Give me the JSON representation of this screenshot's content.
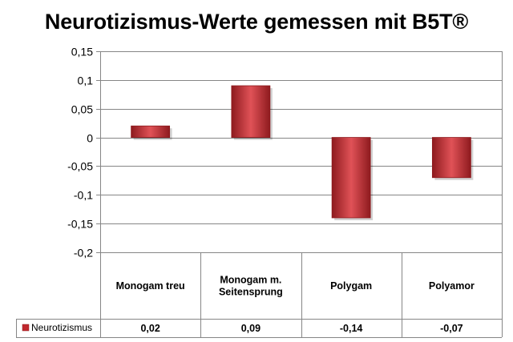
{
  "chart_data": {
    "type": "bar",
    "title": "Neurotizismus-Werte gemessen mit B5T®",
    "categories": [
      "Monogam treu",
      "Monogam m. Seitensprung",
      "Polygam",
      "Polyamor"
    ],
    "category_lines": [
      [
        "Monogam treu"
      ],
      [
        "Monogam m.",
        "Seitensprung"
      ],
      [
        "Polygam"
      ],
      [
        "Polyamor"
      ]
    ],
    "series": [
      {
        "name": "Neurotizismus",
        "values": [
          0.02,
          0.09,
          -0.14,
          -0.07
        ],
        "value_labels": [
          "0,02",
          "0,09",
          "-0,14",
          "-0,07"
        ]
      }
    ],
    "ylim": [
      -0.2,
      0.15
    ],
    "yticks": [
      0.15,
      0.1,
      0.05,
      0,
      -0.05,
      -0.1,
      -0.15,
      -0.2
    ],
    "ytick_labels": [
      "0,15",
      "0,1",
      "0,05",
      "0",
      "-0,05",
      "-0,1",
      "-0,15",
      "-0,2"
    ],
    "grid": true,
    "legend": "data-table",
    "colors": {
      "bar": "#c0282d",
      "bar_light": "#e05257",
      "bar_dark": "#8e1a1e",
      "grid": "#868686"
    }
  }
}
